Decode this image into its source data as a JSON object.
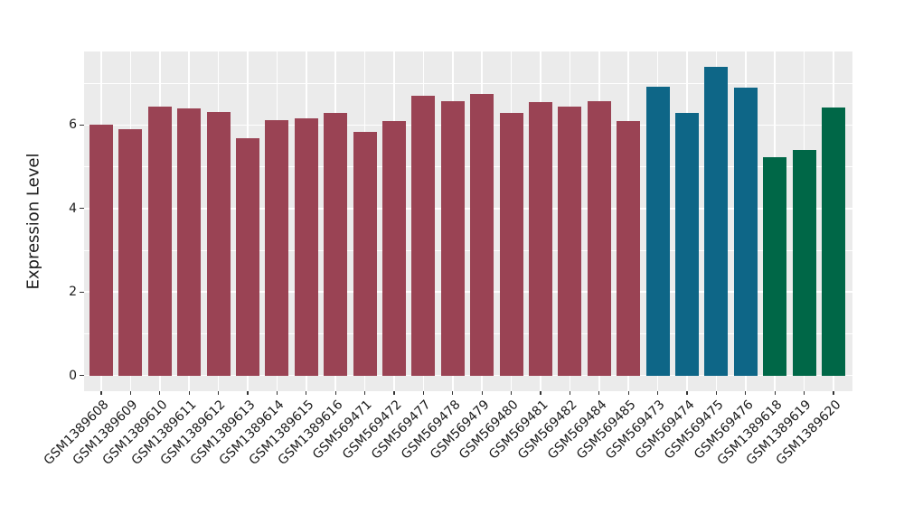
{
  "figure": {
    "background": "#ffffff",
    "panel_background": "#EBEBEB",
    "gridline_color": "#ffffff",
    "axis_text_color": "#1a1a1a",
    "tick_mark_color": "#333333"
  },
  "chart_data": {
    "type": "bar",
    "title": "",
    "xlabel": "",
    "ylabel": "Expression Level",
    "categories": [
      "GSM1389608",
      "GSM1389609",
      "GSM1389610",
      "GSM1389611",
      "GSM1389612",
      "GSM1389613",
      "GSM1389614",
      "GSM1389615",
      "GSM1389616",
      "GSM569471",
      "GSM569472",
      "GSM569477",
      "GSM569478",
      "GSM569479",
      "GSM569480",
      "GSM569481",
      "GSM569482",
      "GSM569484",
      "GSM569485",
      "GSM569473",
      "GSM569474",
      "GSM569475",
      "GSM569476",
      "GSM1389618",
      "GSM1389619",
      "GSM1389620"
    ],
    "values": [
      6.01,
      5.89,
      6.45,
      6.4,
      6.32,
      5.68,
      6.12,
      6.15,
      6.29,
      5.83,
      6.09,
      6.7,
      6.56,
      6.75,
      6.29,
      6.55,
      6.44,
      6.57,
      6.09,
      6.92,
      6.29,
      7.39,
      6.9,
      5.23,
      5.4,
      6.42
    ],
    "bar_colors": [
      "#9A4354",
      "#9A4354",
      "#9A4354",
      "#9A4354",
      "#9A4354",
      "#9A4354",
      "#9A4354",
      "#9A4354",
      "#9A4354",
      "#9A4354",
      "#9A4354",
      "#9A4354",
      "#9A4354",
      "#9A4354",
      "#9A4354",
      "#9A4354",
      "#9A4354",
      "#9A4354",
      "#9A4354",
      "#0E6687",
      "#0E6687",
      "#0E6687",
      "#0E6687",
      "#006747",
      "#006747",
      "#006747"
    ],
    "palette": {
      "maroon": "#9A4354",
      "teal": "#0E6687",
      "green": "#006747"
    },
    "yticks": [
      0,
      2,
      4,
      6
    ],
    "yticks_minor": [
      1,
      3,
      5,
      7
    ],
    "ylim": [
      -0.37,
      7.76
    ],
    "grid": true,
    "legend": "none"
  }
}
